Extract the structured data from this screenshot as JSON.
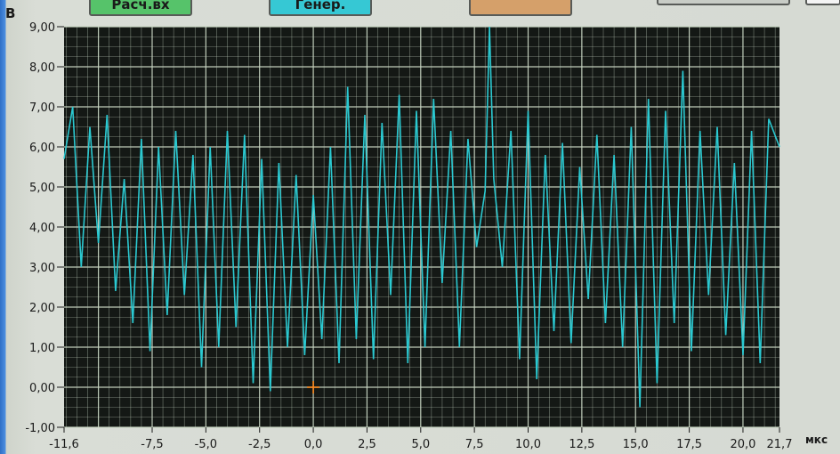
{
  "buttons": {
    "calc_label": "Расч.вх",
    "gen_label": "Генер.",
    "third_label": "",
    "fourth_label": "",
    "fifth_label": ""
  },
  "colors": {
    "plot_bg": "#141815",
    "grid": "#c9d7c4",
    "signal": "#2bc9d1",
    "cursor": "#ff8a1d",
    "calc_button": "#56c36a",
    "gen_button": "#36c8d4",
    "third_button": "#d5a06a"
  },
  "chart_data": {
    "type": "line",
    "ylabel": "В",
    "xlabel": "мкс",
    "xlim": [
      -11.6,
      21.7
    ],
    "ylim": [
      -1.0,
      9.0
    ],
    "x_tick_labels": [
      "-11,6",
      "-7,5",
      "-5,0",
      "-2,5",
      "0,0",
      "2,5",
      "5,0",
      "7,5",
      "10,0",
      "12,5",
      "15,0",
      "17,5",
      "20,0",
      "21,7"
    ],
    "y_tick_labels": [
      "9,00",
      "8,00",
      "7,00",
      "6,00",
      "5,00",
      "4,00",
      "3,00",
      "2,00",
      "1,00",
      "0,00",
      "-1,00"
    ],
    "cursor": {
      "x": 0.0,
      "y": 0.0
    },
    "series": [
      {
        "x": [
          -11.6,
          -11.2,
          -10.8,
          -10.4,
          -10.0,
          -9.6,
          -9.2,
          -8.8,
          -8.4,
          -8.0,
          -7.6,
          -7.2,
          -6.8,
          -6.4,
          -6.0,
          -5.6,
          -5.2,
          -4.8,
          -4.4,
          -4.0,
          -3.6,
          -3.2,
          -2.8,
          -2.4,
          -2.0,
          -1.6,
          -1.2,
          -0.8,
          -0.4,
          0.0,
          0.4,
          0.8,
          1.2,
          1.6,
          2.0,
          2.4,
          2.8,
          3.2,
          3.6,
          4.0,
          4.4,
          4.8,
          5.2,
          5.6,
          6.0,
          6.4,
          6.8,
          7.2,
          7.6,
          8.0,
          8.2,
          8.4,
          8.8,
          9.2,
          9.6,
          10.0,
          10.4,
          10.8,
          11.2,
          11.6,
          12.0,
          12.4,
          12.8,
          13.2,
          13.6,
          14.0,
          14.4,
          14.8,
          15.2,
          15.6,
          16.0,
          16.4,
          16.8,
          17.2,
          17.6,
          18.0,
          18.4,
          18.8,
          19.2,
          19.6,
          20.0,
          20.4,
          20.8,
          21.2,
          21.7
        ],
        "values": [
          5.7,
          7.0,
          3.0,
          6.5,
          3.6,
          6.8,
          2.4,
          5.2,
          1.6,
          6.2,
          0.9,
          6.0,
          1.8,
          6.4,
          2.3,
          5.8,
          0.5,
          6.0,
          1.0,
          6.4,
          1.5,
          6.3,
          0.1,
          5.7,
          -0.1,
          5.6,
          1.0,
          5.3,
          0.8,
          4.8,
          1.2,
          6.0,
          0.6,
          7.5,
          1.2,
          6.8,
          0.7,
          6.6,
          2.3,
          7.3,
          0.6,
          6.9,
          1.0,
          7.2,
          2.6,
          6.4,
          1.0,
          6.2,
          3.5,
          4.9,
          9.0,
          5.2,
          3.0,
          6.4,
          0.7,
          6.9,
          0.2,
          5.8,
          1.4,
          6.1,
          1.1,
          5.5,
          2.2,
          6.3,
          1.6,
          5.8,
          1.0,
          6.5,
          -0.5,
          7.2,
          0.1,
          6.9,
          1.6,
          7.9,
          0.9,
          6.4,
          2.3,
          6.5,
          1.3,
          5.6,
          0.8,
          6.4,
          0.6,
          6.7,
          6.0
        ],
        "color": "#2bc9d1"
      }
    ]
  }
}
